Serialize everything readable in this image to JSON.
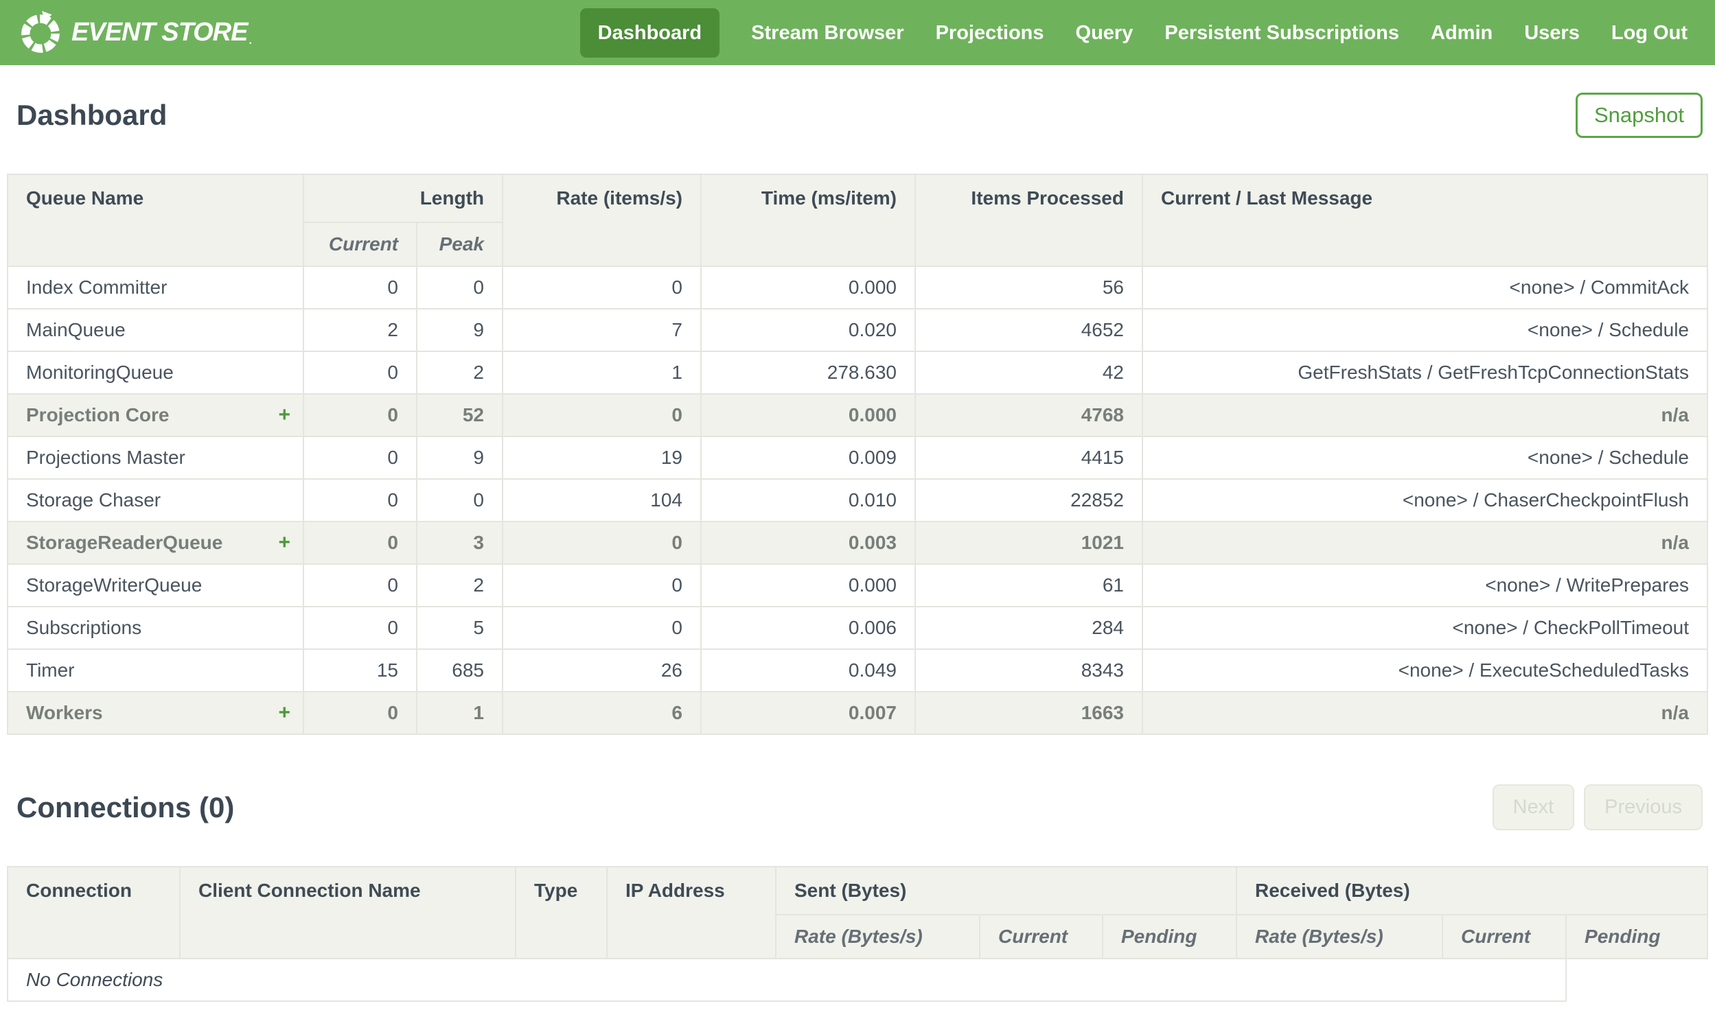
{
  "nav": {
    "logo_text": "EVENT STORE",
    "logo_mark": ".",
    "items": [
      {
        "label": "Dashboard",
        "active": true
      },
      {
        "label": "Stream Browser",
        "active": false
      },
      {
        "label": "Projections",
        "active": false
      },
      {
        "label": "Query",
        "active": false
      },
      {
        "label": "Persistent Subscriptions",
        "active": false
      },
      {
        "label": "Admin",
        "active": false
      },
      {
        "label": "Users",
        "active": false
      },
      {
        "label": "Log Out",
        "active": false
      }
    ]
  },
  "page": {
    "title": "Dashboard",
    "snapshot_button": "Snapshot"
  },
  "queues": {
    "headers": {
      "queue_name": "Queue Name",
      "length": "Length",
      "current": "Current",
      "peak": "Peak",
      "rate": "Rate (items/s)",
      "time": "Time (ms/item)",
      "items_processed": "Items Processed",
      "message": "Current / Last Message"
    },
    "expand_marker": "+",
    "rows": [
      {
        "name": "Index Committer",
        "group": false,
        "current": "0",
        "peak": "0",
        "rate": "0",
        "time": "0.000",
        "items": "56",
        "message": "<none> / CommitAck"
      },
      {
        "name": "MainQueue",
        "group": false,
        "current": "2",
        "peak": "9",
        "rate": "7",
        "time": "0.020",
        "items": "4652",
        "message": "<none> / Schedule"
      },
      {
        "name": "MonitoringQueue",
        "group": false,
        "current": "0",
        "peak": "2",
        "rate": "1",
        "time": "278.630",
        "items": "42",
        "message": "GetFreshStats / GetFreshTcpConnectionStats"
      },
      {
        "name": "Projection Core",
        "group": true,
        "current": "0",
        "peak": "52",
        "rate": "0",
        "time": "0.000",
        "items": "4768",
        "message": "n/a"
      },
      {
        "name": "Projections Master",
        "group": false,
        "current": "0",
        "peak": "9",
        "rate": "19",
        "time": "0.009",
        "items": "4415",
        "message": "<none> / Schedule"
      },
      {
        "name": "Storage Chaser",
        "group": false,
        "current": "0",
        "peak": "0",
        "rate": "104",
        "time": "0.010",
        "items": "22852",
        "message": "<none> / ChaserCheckpointFlush"
      },
      {
        "name": "StorageReaderQueue",
        "group": true,
        "current": "0",
        "peak": "3",
        "rate": "0",
        "time": "0.003",
        "items": "1021",
        "message": "n/a"
      },
      {
        "name": "StorageWriterQueue",
        "group": false,
        "current": "0",
        "peak": "2",
        "rate": "0",
        "time": "0.000",
        "items": "61",
        "message": "<none> / WritePrepares"
      },
      {
        "name": "Subscriptions",
        "group": false,
        "current": "0",
        "peak": "5",
        "rate": "0",
        "time": "0.006",
        "items": "284",
        "message": "<none> / CheckPollTimeout"
      },
      {
        "name": "Timer",
        "group": false,
        "current": "15",
        "peak": "685",
        "rate": "26",
        "time": "0.049",
        "items": "8343",
        "message": "<none> / ExecuteScheduledTasks"
      },
      {
        "name": "Workers",
        "group": true,
        "current": "0",
        "peak": "1",
        "rate": "6",
        "time": "0.007",
        "items": "1663",
        "message": "n/a"
      }
    ]
  },
  "connections": {
    "title": "Connections (0)",
    "next_button": "Next",
    "previous_button": "Previous",
    "headers": {
      "connection": "Connection",
      "client_connection_name": "Client Connection Name",
      "type": "Type",
      "ip_address": "IP Address",
      "sent": "Sent (Bytes)",
      "received": "Received (Bytes)",
      "rate": "Rate (Bytes/s)",
      "current": "Current",
      "pending": "Pending"
    },
    "empty_message": "No Connections"
  },
  "colors": {
    "nav_green": "#6FB25C",
    "active_green": "#4C8D38",
    "accent_green": "#4F9E3C",
    "header_bg": "#F0F2EB",
    "border": "#E3E5DE",
    "text": "#3F4B56"
  }
}
